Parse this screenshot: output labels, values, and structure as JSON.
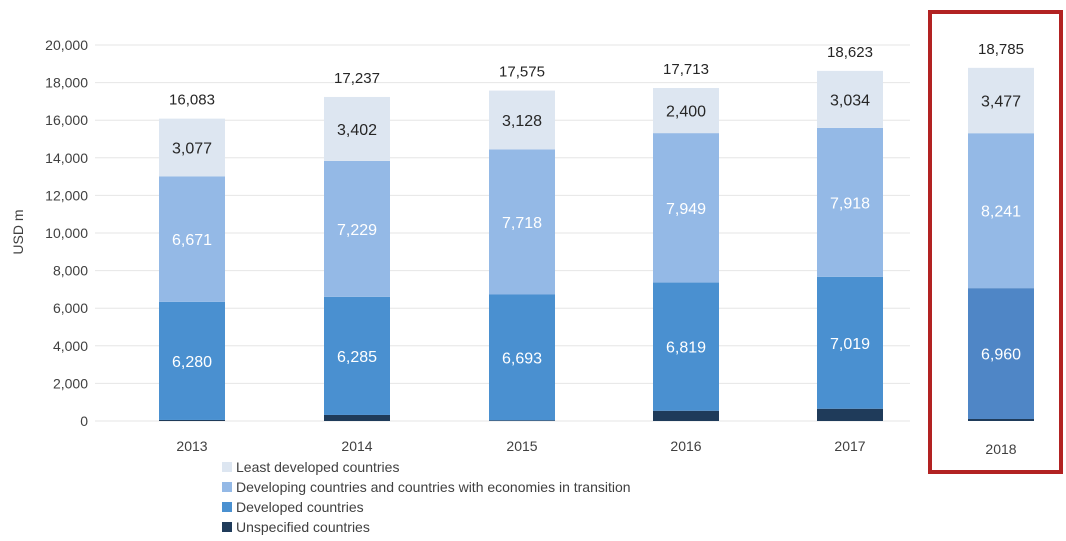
{
  "chart_data": {
    "type": "bar",
    "stacked": true,
    "categories": [
      "2013",
      "2014",
      "2015",
      "2016",
      "2017",
      "2018"
    ],
    "ylabel": "USD m",
    "ylim": [
      0,
      20000
    ],
    "yticks": [
      0,
      2000,
      4000,
      6000,
      8000,
      10000,
      12000,
      14000,
      16000,
      18000,
      20000
    ],
    "ytick_labels": [
      "0",
      "2,000",
      "4,000",
      "6,000",
      "8,000",
      "10,000",
      "12,000",
      "14,000",
      "16,000",
      "18,000",
      "20,000"
    ],
    "grid": true,
    "legend_position": "bottom",
    "highlight_category": "2018",
    "highlight_color": "#b22222",
    "totals": [
      16083,
      17237,
      17575,
      17713,
      18623,
      18785
    ],
    "total_labels": [
      "16,083",
      "17,237",
      "17,575",
      "17,713",
      "18,623",
      "18,785"
    ],
    "series": [
      {
        "name": "Unspecified countries",
        "color": "#1f3b5a",
        "values": [
          55,
          321,
          36,
          545,
          652,
          107
        ],
        "labels": [
          "",
          "",
          "",
          "",
          "",
          ""
        ]
      },
      {
        "name": "Developed countries",
        "color": "#4a90d0",
        "values": [
          6280,
          6285,
          6693,
          6819,
          7019,
          6960
        ],
        "labels": [
          "6,280",
          "6,285",
          "6,693",
          "6,819",
          "7,019",
          "6,960"
        ]
      },
      {
        "name": "Developing countries and countries with economies in transition",
        "color": "#94b9e6",
        "values": [
          6671,
          7229,
          7718,
          7949,
          7918,
          8241
        ],
        "labels": [
          "6,671",
          "7,229",
          "7,718",
          "7,949",
          "7,918",
          "8,241"
        ]
      },
      {
        "name": "Least developed countries",
        "color": "#dde6f1",
        "values": [
          3077,
          3402,
          3128,
          2400,
          3034,
          3477
        ],
        "labels": [
          "3,077",
          "3,402",
          "3,128",
          "2,400",
          "3,034",
          "3,477"
        ]
      }
    ],
    "legend_order": [
      3,
      2,
      1,
      0
    ]
  }
}
